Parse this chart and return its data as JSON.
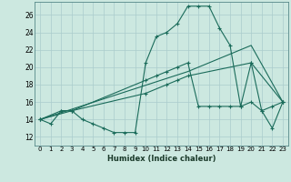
{
  "xlabel": "Humidex (Indice chaleur)",
  "background_color": "#cce8e0",
  "grid_color": "#aacccc",
  "line_color": "#1a6b5a",
  "xlim": [
    -0.5,
    23.5
  ],
  "ylim": [
    11.0,
    27.5
  ],
  "xticks": [
    0,
    1,
    2,
    3,
    4,
    5,
    6,
    7,
    8,
    9,
    10,
    11,
    12,
    13,
    14,
    15,
    16,
    17,
    18,
    19,
    20,
    21,
    22,
    23
  ],
  "yticks": [
    12,
    14,
    16,
    18,
    20,
    22,
    24,
    26
  ],
  "series1_x": [
    0,
    1,
    2,
    3,
    4,
    5,
    6,
    7,
    8,
    9,
    10,
    11,
    12,
    13,
    14,
    15,
    16,
    17,
    18,
    19,
    20,
    21,
    22,
    23
  ],
  "series1_y": [
    14.0,
    13.5,
    15.0,
    15.0,
    14.0,
    13.5,
    13.0,
    12.5,
    12.5,
    12.5,
    20.5,
    23.5,
    24.0,
    25.0,
    27.0,
    27.0,
    27.0,
    24.5,
    22.5,
    15.5,
    20.5,
    15.0,
    13.0,
    16.0
  ],
  "series2_x": [
    0,
    2,
    3,
    10,
    11,
    12,
    13,
    14,
    15,
    16,
    17,
    18,
    19,
    20,
    21,
    22,
    23
  ],
  "series2_y": [
    14.0,
    15.0,
    15.0,
    18.5,
    19.0,
    19.5,
    20.0,
    20.5,
    15.5,
    15.5,
    15.5,
    15.5,
    15.5,
    16.0,
    15.0,
    15.5,
    16.0
  ],
  "series3_x": [
    0,
    3,
    10,
    12,
    13,
    14,
    20,
    23
  ],
  "series3_y": [
    14.0,
    15.0,
    17.0,
    18.0,
    18.5,
    19.0,
    20.5,
    16.0
  ],
  "series4_x": [
    0,
    14,
    20,
    23
  ],
  "series4_y": [
    14.0,
    19.5,
    22.5,
    16.0
  ]
}
